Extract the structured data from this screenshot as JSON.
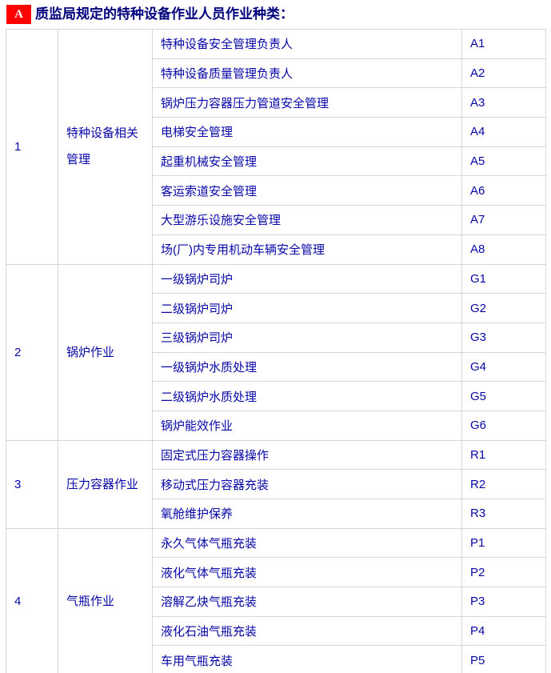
{
  "header": {
    "badge_label": "A",
    "title": "质监局规定的特种设备作业人员作业种类："
  },
  "colors": {
    "badge_bg": "#ff0000",
    "badge_text": "#ffffff",
    "title_text": "#00007d",
    "cell_text": "#0707a8",
    "border": "#d6d6d6",
    "background": "#ffffff"
  },
  "table": {
    "groups": [
      {
        "no": "1",
        "category": "特种设备相关管理",
        "items": [
          {
            "name": "特种设备安全管理负责人",
            "code": "A1"
          },
          {
            "name": "特种设备质量管理负责人",
            "code": "A2"
          },
          {
            "name": "锅炉压力容器压力管道安全管理",
            "code": "A3"
          },
          {
            "name": "电梯安全管理",
            "code": "A4"
          },
          {
            "name": "起重机械安全管理",
            "code": "A5"
          },
          {
            "name": "客运索道安全管理",
            "code": "A6"
          },
          {
            "name": "大型游乐设施安全管理",
            "code": "A7"
          },
          {
            "name": "场(厂)内专用机动车辆安全管理",
            "code": "A8"
          }
        ]
      },
      {
        "no": "2",
        "category": "锅炉作业",
        "items": [
          {
            "name": "一级锅炉司炉",
            "code": "G1"
          },
          {
            "name": "二级锅炉司炉",
            "code": "G2"
          },
          {
            "name": "三级锅炉司炉",
            "code": "G3"
          },
          {
            "name": "一级锅炉水质处理",
            "code": "G4"
          },
          {
            "name": "二级锅炉水质处理",
            "code": "G5"
          },
          {
            "name": "锅炉能效作业",
            "code": "G6"
          }
        ]
      },
      {
        "no": "3",
        "category": "压力容器作业",
        "items": [
          {
            "name": "固定式压力容器操作",
            "code": "R1"
          },
          {
            "name": "移动式压力容器充装",
            "code": "R2"
          },
          {
            "name": "氧舱维护保养",
            "code": "R3"
          }
        ]
      },
      {
        "no": "4",
        "category": "气瓶作业",
        "items": [
          {
            "name": "永久气体气瓶充装",
            "code": "P1"
          },
          {
            "name": "液化气体气瓶充装",
            "code": "P2"
          },
          {
            "name": "溶解乙炔气瓶充装",
            "code": "P3"
          },
          {
            "name": "液化石油气瓶充装",
            "code": "P4"
          },
          {
            "name": "车用气瓶充装",
            "code": "P5"
          }
        ]
      }
    ]
  }
}
